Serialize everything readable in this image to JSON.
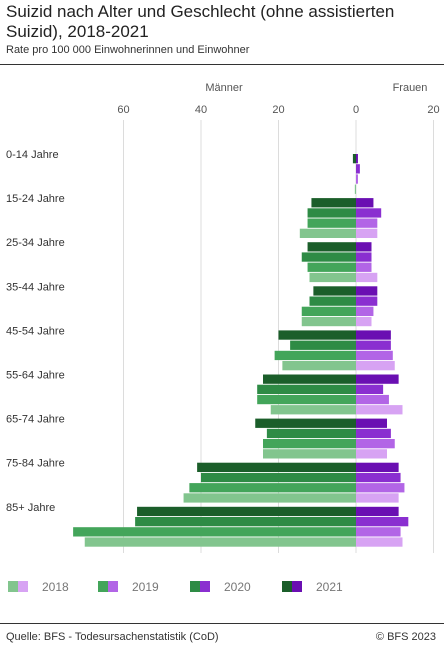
{
  "header": {
    "title": "Suizid nach Alter und Geschlecht (ohne assistierten Suizid), 2018-2021",
    "subtitle": "Rate pro 100 000 Einwohnerinnen und Einwohner"
  },
  "footer": {
    "source": "Quelle: BFS - Todesursachenstatistik (CoD)",
    "copyright": "© BFS 2023"
  },
  "chart_data": {
    "type": "bar",
    "orientation": "horizontal",
    "layout": "population-pyramid",
    "side_labels": {
      "left": "Männer",
      "right": "Frauen"
    },
    "x_ticks": [
      {
        "value": -60,
        "label": "60"
      },
      {
        "value": -40,
        "label": "40"
      },
      {
        "value": -20,
        "label": "20"
      },
      {
        "value": 0,
        "label": "0"
      },
      {
        "value": 20,
        "label": "20"
      }
    ],
    "xlim": [
      -74,
      20
    ],
    "grid": true,
    "legend_position": "bottom",
    "categories": [
      "0-14 Jahre",
      "15-24 Jahre",
      "25-34 Jahre",
      "35-44 Jahre",
      "45-54 Jahre",
      "55-64 Jahre",
      "65-74 Jahre",
      "75-84 Jahre",
      "85+ Jahre"
    ],
    "years": [
      "2021",
      "2020",
      "2019",
      "2018"
    ],
    "colors": {
      "men": {
        "2021": "#1b5e2a",
        "2020": "#2e8b45",
        "2019": "#43a55a",
        "2018": "#82c58e"
      },
      "women": {
        "2021": "#6a0fb2",
        "2020": "#8a2fd0",
        "2019": "#b265e6",
        "2018": "#d7a3f3"
      }
    },
    "men": {
      "2021": [
        0.8,
        11.5,
        12.5,
        11,
        20,
        24,
        26,
        41,
        56.5
      ],
      "2020": [
        0,
        12.5,
        14,
        12,
        17,
        25.5,
        23,
        40,
        57
      ],
      "2019": [
        0,
        12.5,
        12.5,
        14,
        21,
        25.5,
        24,
        43,
        73
      ],
      "2018": [
        0.3,
        14.5,
        12,
        14,
        19,
        22,
        24,
        44.5,
        70
      ]
    },
    "women": {
      "2021": [
        0.5,
        4.5,
        4,
        5.5,
        9,
        11,
        8,
        11,
        11
      ],
      "2020": [
        1,
        6.5,
        4,
        5.5,
        9,
        7,
        9,
        11.5,
        13.5
      ],
      "2019": [
        0.5,
        5.5,
        4,
        4.5,
        9.5,
        8.5,
        10,
        12.5,
        11.5
      ],
      "2018": [
        0,
        5.5,
        5.5,
        4,
        10,
        12,
        8,
        11,
        12
      ]
    },
    "legend": [
      "2018",
      "2019",
      "2020",
      "2021"
    ]
  }
}
